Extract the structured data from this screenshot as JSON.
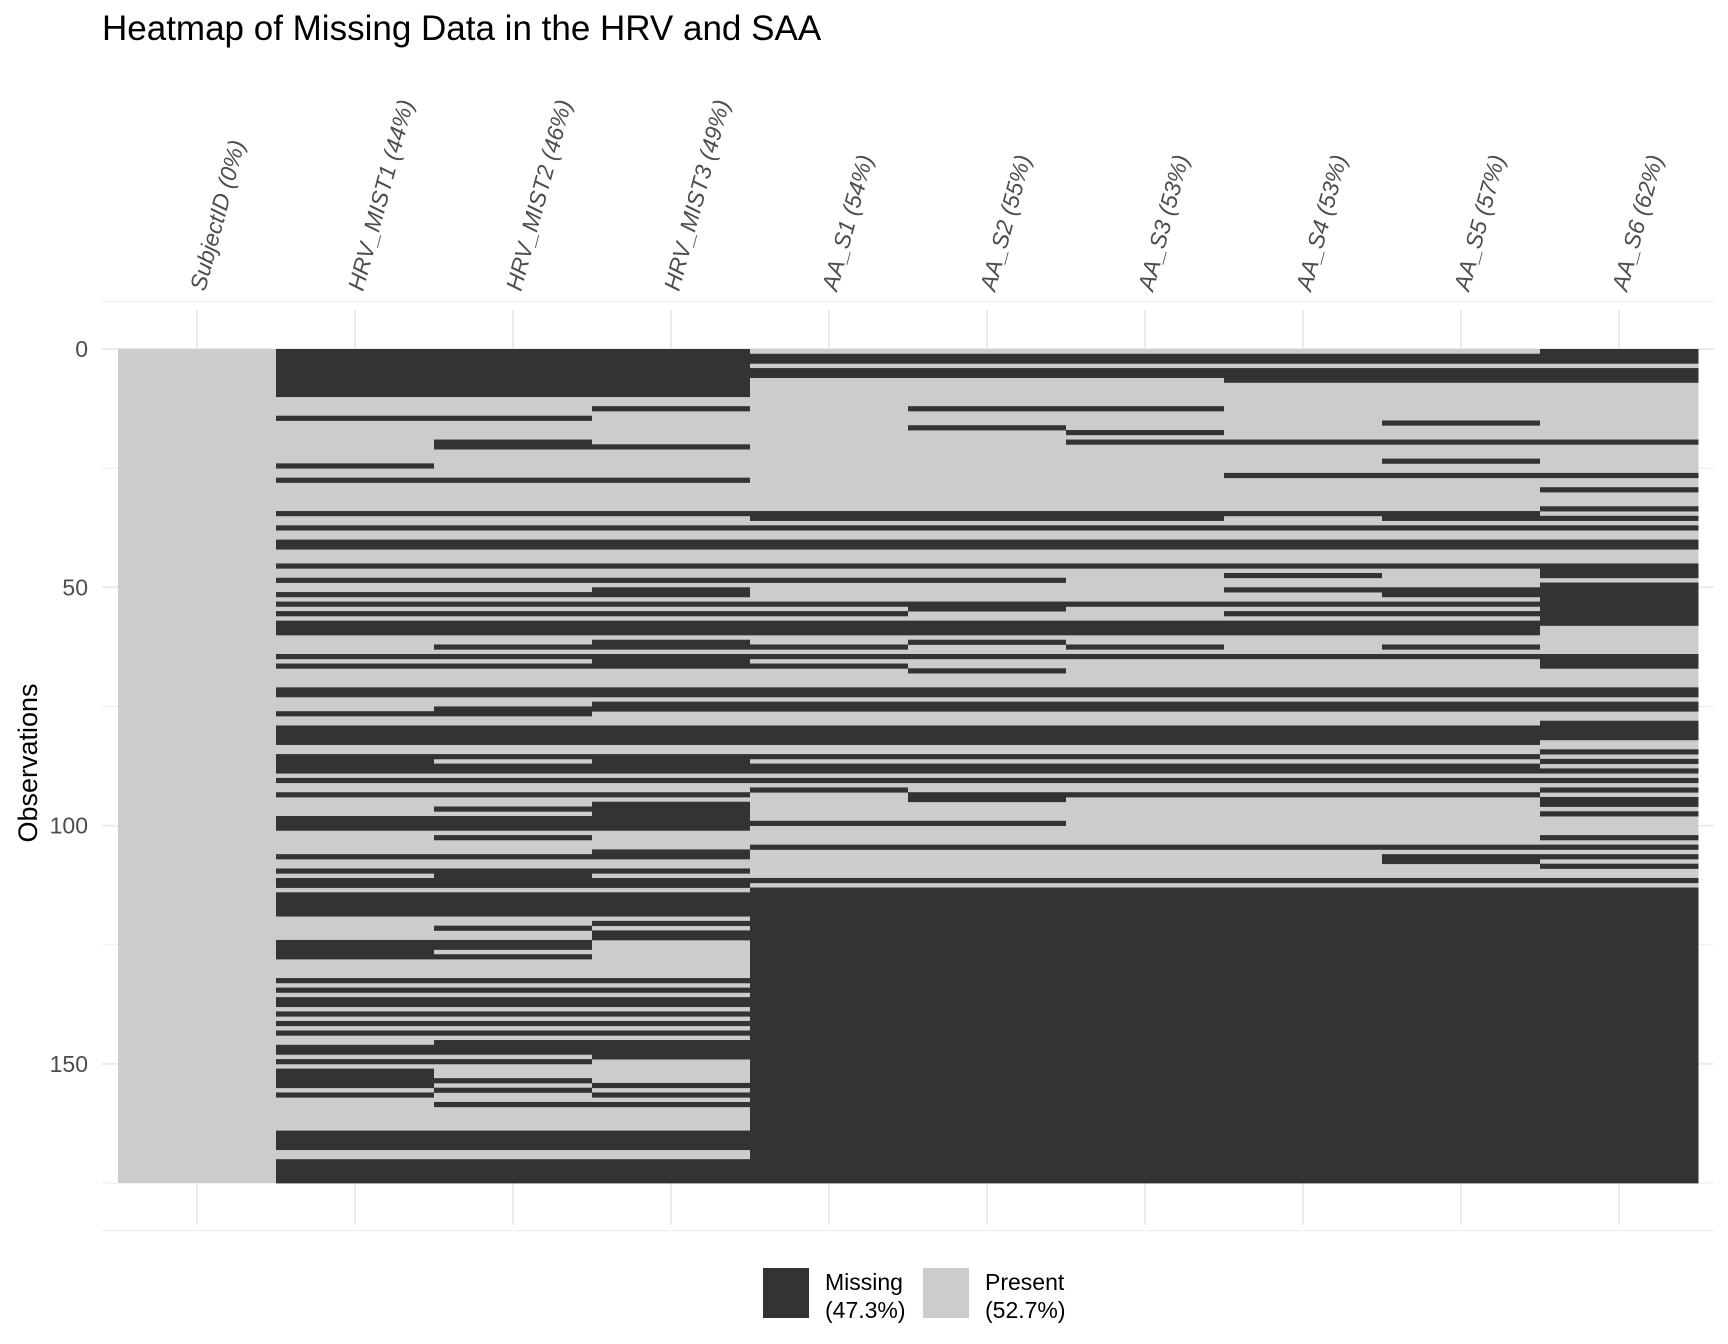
{
  "chart_data": {
    "type": "heatmap",
    "title": "Heatmap of Missing Data in the HRV and SAA",
    "xlabel": "",
    "ylabel": "Observations",
    "ylim": [
      0,
      175
    ],
    "y_ticks": [
      0,
      50,
      100,
      150
    ],
    "n_observations": 175,
    "columns": [
      {
        "label": "SubjectID (0%)",
        "missing_percent": 0
      },
      {
        "label": "HRV_MIST1 (44%)",
        "missing_percent": 44
      },
      {
        "label": "HRV_MIST2 (46%)",
        "missing_percent": 46
      },
      {
        "label": "HRV_MIST3 (49%)",
        "missing_percent": 49
      },
      {
        "label": "AA_S1 (54%)",
        "missing_percent": 54
      },
      {
        "label": "AA_S2 (55%)",
        "missing_percent": 55
      },
      {
        "label": "AA_S3 (53%)",
        "missing_percent": 53
      },
      {
        "label": "AA_S4 (53%)",
        "missing_percent": 53
      },
      {
        "label": "AA_S5 (57%)",
        "missing_percent": 57
      },
      {
        "label": "AA_S6 (62%)",
        "missing_percent": 62
      }
    ],
    "missing_rows": [
      [],
      [
        [
          0,
          10
        ],
        [
          14,
          15
        ],
        [
          24,
          25
        ],
        [
          27,
          28
        ],
        [
          34,
          35
        ],
        [
          37,
          38
        ],
        [
          40,
          42
        ],
        [
          45,
          46
        ],
        [
          48,
          49
        ],
        [
          51,
          52
        ],
        [
          53,
          54
        ],
        [
          55,
          56
        ],
        [
          57,
          60
        ],
        [
          64,
          65
        ],
        [
          66,
          67
        ],
        [
          71,
          73
        ],
        [
          76,
          77
        ],
        [
          79,
          83
        ],
        [
          85,
          89
        ],
        [
          90,
          91
        ],
        [
          93,
          94
        ],
        [
          98,
          101
        ],
        [
          106,
          107
        ],
        [
          109,
          110
        ],
        [
          111,
          113
        ],
        [
          114,
          119
        ],
        [
          124,
          128
        ],
        [
          132,
          133
        ],
        [
          134,
          135
        ],
        [
          136,
          138
        ],
        [
          139,
          140
        ],
        [
          141,
          142
        ],
        [
          143,
          144
        ],
        [
          146,
          148
        ],
        [
          149,
          150
        ],
        [
          151,
          155
        ],
        [
          156,
          157
        ],
        [
          164,
          168
        ],
        [
          170,
          175
        ]
      ],
      [
        [
          0,
          10
        ],
        [
          14,
          15
        ],
        [
          19,
          21
        ],
        [
          27,
          28
        ],
        [
          34,
          35
        ],
        [
          37,
          38
        ],
        [
          40,
          42
        ],
        [
          45,
          46
        ],
        [
          48,
          49
        ],
        [
          51,
          52
        ],
        [
          53,
          54
        ],
        [
          55,
          56
        ],
        [
          57,
          60
        ],
        [
          62,
          63
        ],
        [
          64,
          65
        ],
        [
          66,
          67
        ],
        [
          71,
          73
        ],
        [
          75,
          77
        ],
        [
          79,
          83
        ],
        [
          85,
          86
        ],
        [
          87,
          89
        ],
        [
          90,
          91
        ],
        [
          93,
          94
        ],
        [
          96,
          97
        ],
        [
          98,
          101
        ],
        [
          102,
          103
        ],
        [
          106,
          107
        ],
        [
          109,
          113
        ],
        [
          114,
          119
        ],
        [
          121,
          122
        ],
        [
          124,
          126
        ],
        [
          127,
          128
        ],
        [
          132,
          133
        ],
        [
          134,
          135
        ],
        [
          136,
          138
        ],
        [
          139,
          140
        ],
        [
          141,
          142
        ],
        [
          143,
          144
        ],
        [
          145,
          148
        ],
        [
          149,
          150
        ],
        [
          153,
          154
        ],
        [
          155,
          156
        ],
        [
          158,
          159
        ],
        [
          164,
          168
        ],
        [
          170,
          175
        ]
      ],
      [
        [
          0,
          10
        ],
        [
          12,
          13
        ],
        [
          20,
          21
        ],
        [
          27,
          28
        ],
        [
          34,
          35
        ],
        [
          37,
          38
        ],
        [
          40,
          42
        ],
        [
          45,
          46
        ],
        [
          48,
          49
        ],
        [
          50,
          52
        ],
        [
          53,
          54
        ],
        [
          55,
          56
        ],
        [
          57,
          60
        ],
        [
          61,
          63
        ],
        [
          64,
          67
        ],
        [
          71,
          73
        ],
        [
          74,
          76
        ],
        [
          79,
          83
        ],
        [
          85,
          89
        ],
        [
          90,
          91
        ],
        [
          93,
          94
        ],
        [
          95,
          101
        ],
        [
          105,
          107
        ],
        [
          109,
          110
        ],
        [
          111,
          113
        ],
        [
          114,
          119
        ],
        [
          120,
          121
        ],
        [
          122,
          124
        ],
        [
          132,
          133
        ],
        [
          134,
          135
        ],
        [
          136,
          138
        ],
        [
          139,
          140
        ],
        [
          141,
          142
        ],
        [
          143,
          144
        ],
        [
          145,
          149
        ],
        [
          154,
          155
        ],
        [
          156,
          157
        ],
        [
          158,
          159
        ],
        [
          164,
          168
        ],
        [
          170,
          175
        ]
      ],
      [
        [
          1,
          3
        ],
        [
          4,
          6
        ],
        [
          34,
          36
        ],
        [
          37,
          38
        ],
        [
          40,
          42
        ],
        [
          45,
          46
        ],
        [
          48,
          49
        ],
        [
          53,
          54
        ],
        [
          55,
          56
        ],
        [
          57,
          60
        ],
        [
          62,
          63
        ],
        [
          64,
          65
        ],
        [
          66,
          67
        ],
        [
          71,
          73
        ],
        [
          74,
          76
        ],
        [
          79,
          83
        ],
        [
          85,
          86
        ],
        [
          87,
          89
        ],
        [
          90,
          91
        ],
        [
          92,
          93
        ],
        [
          99,
          100
        ],
        [
          104,
          105
        ],
        [
          111,
          112
        ],
        [
          113,
          175
        ]
      ],
      [
        [
          1,
          3
        ],
        [
          4,
          6
        ],
        [
          12,
          13
        ],
        [
          16,
          17
        ],
        [
          34,
          36
        ],
        [
          37,
          38
        ],
        [
          40,
          42
        ],
        [
          45,
          46
        ],
        [
          48,
          49
        ],
        [
          53,
          55
        ],
        [
          57,
          60
        ],
        [
          61,
          62
        ],
        [
          64,
          65
        ],
        [
          67,
          68
        ],
        [
          71,
          73
        ],
        [
          74,
          76
        ],
        [
          79,
          83
        ],
        [
          85,
          86
        ],
        [
          87,
          89
        ],
        [
          90,
          91
        ],
        [
          93,
          95
        ],
        [
          99,
          100
        ],
        [
          104,
          105
        ],
        [
          111,
          112
        ],
        [
          113,
          175
        ]
      ],
      [
        [
          1,
          3
        ],
        [
          4,
          6
        ],
        [
          12,
          13
        ],
        [
          17,
          18
        ],
        [
          19,
          20
        ],
        [
          34,
          36
        ],
        [
          37,
          38
        ],
        [
          40,
          42
        ],
        [
          45,
          46
        ],
        [
          53,
          54
        ],
        [
          57,
          60
        ],
        [
          62,
          63
        ],
        [
          64,
          65
        ],
        [
          71,
          73
        ],
        [
          74,
          76
        ],
        [
          79,
          83
        ],
        [
          85,
          86
        ],
        [
          87,
          89
        ],
        [
          90,
          91
        ],
        [
          93,
          94
        ],
        [
          104,
          105
        ],
        [
          111,
          112
        ],
        [
          113,
          175
        ]
      ],
      [
        [
          1,
          3
        ],
        [
          4,
          7
        ],
        [
          19,
          20
        ],
        [
          26,
          27
        ],
        [
          34,
          35
        ],
        [
          37,
          38
        ],
        [
          40,
          42
        ],
        [
          45,
          46
        ],
        [
          47,
          48
        ],
        [
          50,
          51
        ],
        [
          53,
          54
        ],
        [
          55,
          56
        ],
        [
          57,
          60
        ],
        [
          64,
          65
        ],
        [
          71,
          73
        ],
        [
          74,
          76
        ],
        [
          79,
          83
        ],
        [
          85,
          86
        ],
        [
          87,
          89
        ],
        [
          90,
          91
        ],
        [
          93,
          94
        ],
        [
          104,
          105
        ],
        [
          111,
          112
        ],
        [
          113,
          175
        ]
      ],
      [
        [
          1,
          3
        ],
        [
          4,
          7
        ],
        [
          15,
          16
        ],
        [
          19,
          20
        ],
        [
          23,
          24
        ],
        [
          26,
          27
        ],
        [
          34,
          36
        ],
        [
          37,
          38
        ],
        [
          40,
          42
        ],
        [
          45,
          46
        ],
        [
          50,
          52
        ],
        [
          53,
          54
        ],
        [
          55,
          56
        ],
        [
          57,
          60
        ],
        [
          62,
          63
        ],
        [
          64,
          65
        ],
        [
          71,
          73
        ],
        [
          74,
          76
        ],
        [
          79,
          83
        ],
        [
          85,
          86
        ],
        [
          87,
          89
        ],
        [
          90,
          91
        ],
        [
          93,
          94
        ],
        [
          104,
          105
        ],
        [
          106,
          108
        ],
        [
          111,
          112
        ],
        [
          113,
          175
        ]
      ],
      [
        [
          0,
          3
        ],
        [
          4,
          7
        ],
        [
          19,
          20
        ],
        [
          26,
          27
        ],
        [
          29,
          30
        ],
        [
          33,
          34
        ],
        [
          35,
          36
        ],
        [
          37,
          38
        ],
        [
          40,
          42
        ],
        [
          45,
          48
        ],
        [
          49,
          50
        ],
        [
          50,
          58
        ],
        [
          64,
          67
        ],
        [
          71,
          73
        ],
        [
          74,
          76
        ],
        [
          78,
          82
        ],
        [
          84,
          85
        ],
        [
          86,
          87
        ],
        [
          88,
          89
        ],
        [
          90,
          91
        ],
        [
          92,
          93
        ],
        [
          94,
          96
        ],
        [
          97,
          98
        ],
        [
          102,
          103
        ],
        [
          104,
          105
        ],
        [
          106,
          107
        ],
        [
          108,
          109
        ],
        [
          111,
          112
        ],
        [
          113,
          175
        ]
      ]
    ],
    "legend": [
      {
        "name": "Missing",
        "percent_label": "(47.3%)",
        "color": "#333333"
      },
      {
        "name": "Present",
        "percent_label": "(52.7%)",
        "color": "#cccccc"
      }
    ],
    "legend_position": "bottom",
    "grid": true,
    "colors": {
      "missing": "#333333",
      "present": "#cccccc",
      "grid": "#ebebeb",
      "tick_text": "#4d4d4d"
    }
  }
}
